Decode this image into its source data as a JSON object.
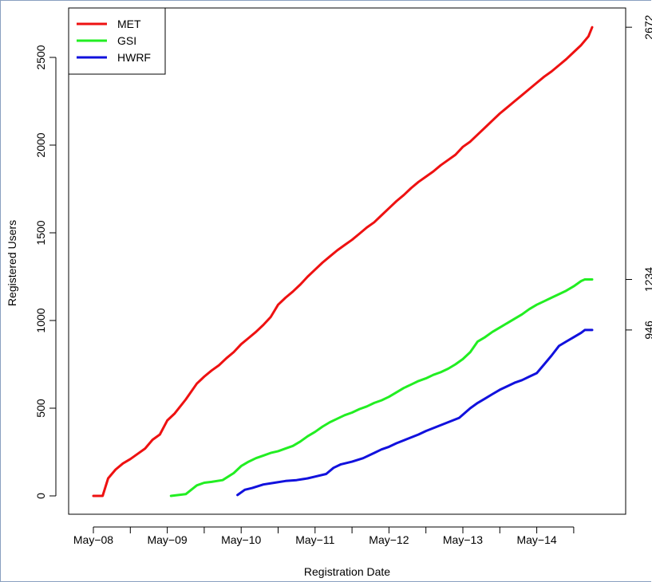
{
  "chart_data": {
    "type": "line",
    "title": "",
    "xlabel": "Registration Date",
    "ylabel": "Registered Users",
    "ylim": [
      -100,
      2700
    ],
    "y_ticks": [
      0,
      500,
      1000,
      1500,
      2000,
      2500
    ],
    "x_tick_labels": [
      "May−08",
      "May−09",
      "May−10",
      "May−11",
      "May−12",
      "May−13",
      "May−14"
    ],
    "x_minor_tick_count": 14,
    "right_axis_labels": [
      "2672",
      "1234",
      "946"
    ],
    "grid": false,
    "legend_position": "top-left",
    "series": [
      {
        "name": "MET",
        "color": "#ee1111",
        "x": [
          0,
          0.1,
          0.25,
          0.4,
          0.6,
          0.8,
          1.0,
          1.2,
          1.4,
          1.6,
          1.8,
          2.0,
          2.2,
          2.5,
          2.8,
          3.0,
          3.2,
          3.4,
          3.6,
          3.8,
          4.0,
          4.2,
          4.4,
          4.6,
          4.8,
          5.0,
          5.2,
          5.4,
          5.6,
          5.8,
          6.0,
          6.2,
          6.4,
          6.6,
          6.8,
          7.0,
          7.2,
          7.4,
          7.6,
          7.8,
          8.0,
          8.2,
          8.4,
          8.6,
          8.8,
          9.0,
          9.2,
          9.4,
          9.6,
          9.8,
          10.0,
          10.2,
          10.4,
          10.6,
          10.8,
          11.0,
          11.2,
          11.4,
          11.6,
          11.8,
          12.0,
          12.2,
          12.4,
          12.6,
          12.8,
          13.0,
          13.2,
          13.4,
          13.5
        ],
        "values": [
          0,
          0,
          0,
          100,
          150,
          185,
          210,
          240,
          270,
          320,
          350,
          430,
          470,
          550,
          640,
          680,
          715,
          745,
          785,
          820,
          865,
          900,
          935,
          975,
          1020,
          1090,
          1130,
          1165,
          1205,
          1250,
          1290,
          1330,
          1365,
          1400,
          1430,
          1460,
          1495,
          1530,
          1560,
          1600,
          1640,
          1680,
          1715,
          1755,
          1790,
          1820,
          1850,
          1885,
          1915,
          1945,
          1990,
          2020,
          2060,
          2100,
          2140,
          2180,
          2215,
          2250,
          2285,
          2320,
          2355,
          2390,
          2420,
          2455,
          2490,
          2530,
          2570,
          2620,
          2672
        ]
      },
      {
        "name": "GSI",
        "color": "#22ee22",
        "x": [
          2.1,
          2.3,
          2.5,
          2.8,
          3.0,
          3.2,
          3.5,
          3.8,
          4.0,
          4.2,
          4.4,
          4.6,
          4.8,
          5.0,
          5.2,
          5.4,
          5.6,
          5.8,
          6.0,
          6.2,
          6.4,
          6.6,
          6.8,
          7.0,
          7.2,
          7.4,
          7.6,
          7.8,
          8.0,
          8.2,
          8.4,
          8.6,
          8.8,
          9.0,
          9.2,
          9.4,
          9.6,
          9.8,
          10.0,
          10.2,
          10.4,
          10.6,
          10.8,
          11.0,
          11.2,
          11.4,
          11.6,
          11.8,
          12.0,
          12.2,
          12.4,
          12.6,
          12.8,
          13.0,
          13.2,
          13.3,
          13.5
        ],
        "values": [
          0,
          5,
          10,
          60,
          75,
          80,
          90,
          130,
          170,
          195,
          215,
          230,
          245,
          255,
          270,
          285,
          310,
          340,
          365,
          395,
          420,
          440,
          460,
          475,
          495,
          510,
          530,
          545,
          565,
          590,
          615,
          635,
          655,
          670,
          690,
          705,
          725,
          750,
          780,
          820,
          880,
          905,
          935,
          960,
          985,
          1010,
          1035,
          1065,
          1090,
          1110,
          1130,
          1150,
          1170,
          1195,
          1225,
          1234,
          1234
        ]
      },
      {
        "name": "HWRF",
        "color": "#1111dd",
        "x": [
          3.9,
          4.1,
          4.3,
          4.6,
          4.9,
          5.2,
          5.5,
          5.8,
          6.0,
          6.3,
          6.5,
          6.7,
          7.0,
          7.3,
          7.6,
          7.8,
          8.0,
          8.2,
          8.5,
          8.8,
          9.0,
          9.3,
          9.6,
          9.9,
          10.2,
          10.4,
          10.6,
          10.8,
          11.0,
          11.2,
          11.4,
          11.6,
          11.8,
          12.0,
          12.2,
          12.4,
          12.6,
          12.8,
          13.0,
          13.2,
          13.3,
          13.5
        ],
        "values": [
          5,
          35,
          45,
          65,
          75,
          85,
          90,
          100,
          110,
          125,
          160,
          180,
          195,
          215,
          245,
          265,
          280,
          300,
          325,
          350,
          370,
          395,
          420,
          445,
          500,
          530,
          555,
          580,
          605,
          625,
          645,
          660,
          680,
          700,
          750,
          800,
          855,
          880,
          905,
          930,
          946,
          946
        ]
      }
    ]
  }
}
